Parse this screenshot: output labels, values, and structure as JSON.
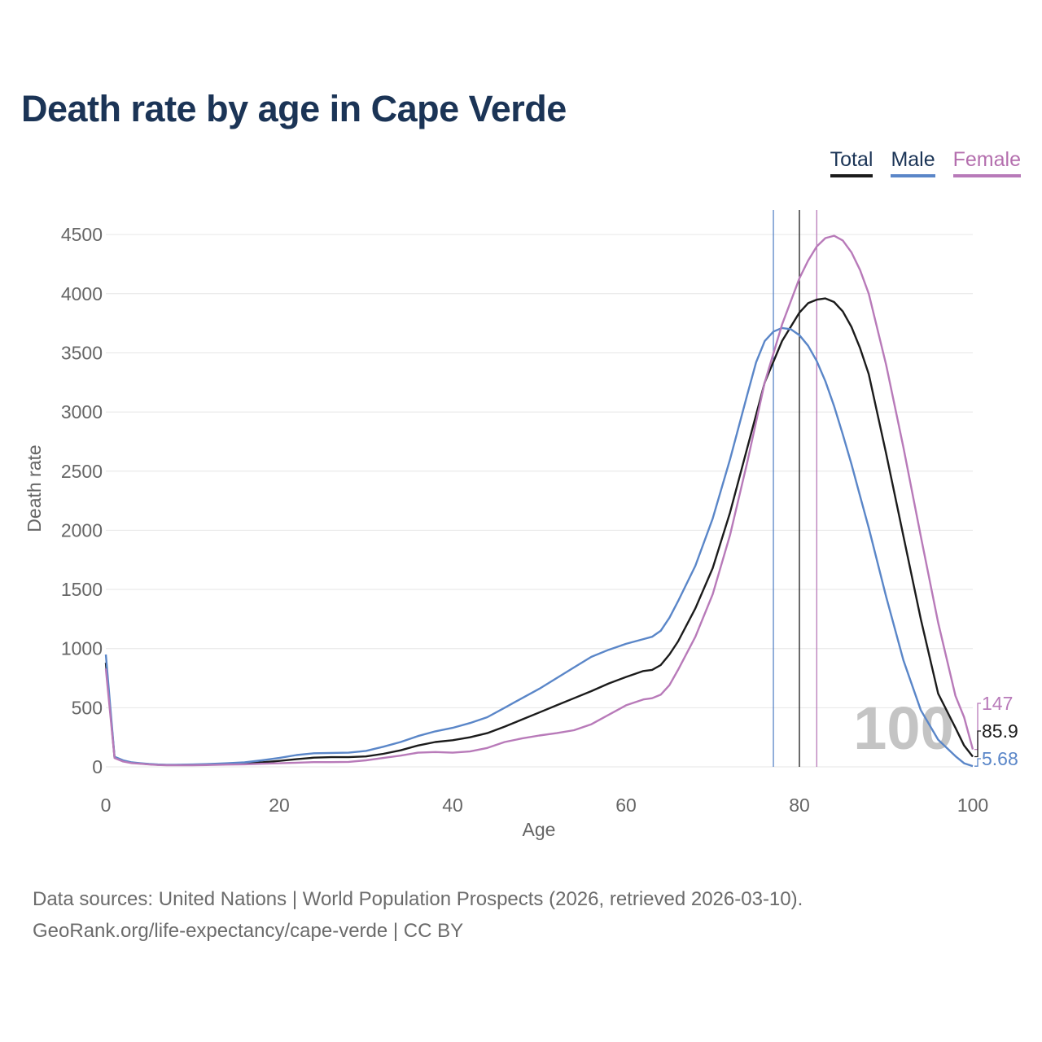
{
  "title": "Death rate by age in Cape Verde",
  "legend": [
    {
      "label": "Total",
      "color": "#1b1b1b"
    },
    {
      "label": "Male",
      "color": "#5a86c8"
    },
    {
      "label": "Female",
      "color": "#b87ab9"
    }
  ],
  "footer": {
    "line1": "Data sources: United Nations | World Population Prospects (2026, retrieved 2026-03-10).",
    "line2": "GeoRank.org/life-expectancy/cape-verde | CC BY"
  },
  "chart_data": {
    "type": "line",
    "xlabel": "Age",
    "ylabel": "Death rate",
    "xlim": [
      0,
      100
    ],
    "ylim": [
      0,
      4700
    ],
    "xticks": [
      0,
      20,
      40,
      60,
      80,
      100
    ],
    "yticks": [
      0,
      500,
      1000,
      1500,
      2000,
      2500,
      3000,
      3500,
      4000,
      4500
    ],
    "grid": true,
    "watermark": "100",
    "vlines": [
      {
        "series": "Male",
        "x": 77
      },
      {
        "series": "Total",
        "x": 80
      },
      {
        "series": "Female",
        "x": 82
      }
    ],
    "end_labels": [
      {
        "series": "Female",
        "text": "147",
        "value": 147
      },
      {
        "series": "Total",
        "text": "85.9",
        "value": 85.9
      },
      {
        "series": "Male",
        "text": "5.68",
        "value": 5.68
      }
    ],
    "series": [
      {
        "name": "Total",
        "color": "#1b1b1b",
        "x": [
          0,
          1,
          2,
          3,
          4,
          5,
          6,
          7,
          8,
          10,
          12,
          14,
          16,
          18,
          20,
          22,
          24,
          26,
          28,
          30,
          32,
          34,
          36,
          38,
          40,
          42,
          44,
          46,
          48,
          50,
          52,
          54,
          56,
          58,
          60,
          62,
          63,
          64,
          65,
          66,
          68,
          70,
          72,
          74,
          76,
          78,
          80,
          81,
          82,
          83,
          84,
          85,
          86,
          87,
          88,
          90,
          92,
          94,
          96,
          98,
          99,
          100
        ],
        "y": [
          880,
          80,
          50,
          35,
          28,
          22,
          18,
          16,
          15,
          17,
          20,
          24,
          28,
          38,
          50,
          65,
          78,
          82,
          82,
          88,
          110,
          140,
          180,
          210,
          225,
          250,
          285,
          340,
          400,
          460,
          520,
          580,
          640,
          705,
          760,
          810,
          820,
          860,
          950,
          1060,
          1340,
          1680,
          2150,
          2700,
          3250,
          3600,
          3840,
          3920,
          3950,
          3960,
          3930,
          3850,
          3720,
          3540,
          3320,
          2650,
          1950,
          1250,
          620,
          330,
          180,
          86
        ]
      },
      {
        "name": "Male",
        "color": "#5a86c8",
        "x": [
          0,
          1,
          2,
          3,
          4,
          5,
          6,
          7,
          8,
          10,
          12,
          14,
          16,
          18,
          20,
          22,
          24,
          26,
          28,
          30,
          32,
          34,
          36,
          38,
          40,
          42,
          44,
          46,
          48,
          50,
          52,
          54,
          56,
          58,
          60,
          62,
          63,
          64,
          65,
          66,
          68,
          70,
          72,
          74,
          75,
          76,
          77,
          78,
          79,
          80,
          81,
          82,
          83,
          84,
          85,
          86,
          87,
          88,
          90,
          92,
          94,
          96,
          98,
          99,
          100
        ],
        "y": [
          950,
          85,
          55,
          38,
          30,
          24,
          20,
          18,
          17,
          20,
          24,
          30,
          38,
          55,
          75,
          100,
          115,
          118,
          120,
          135,
          170,
          210,
          260,
          300,
          330,
          370,
          420,
          500,
          580,
          660,
          750,
          840,
          930,
          990,
          1040,
          1080,
          1100,
          1150,
          1260,
          1400,
          1700,
          2100,
          2600,
          3150,
          3420,
          3600,
          3680,
          3710,
          3700,
          3650,
          3560,
          3430,
          3260,
          3050,
          2810,
          2560,
          2290,
          2020,
          1440,
          900,
          480,
          230,
          90,
          30,
          6
        ]
      },
      {
        "name": "Female",
        "color": "#b87ab9",
        "x": [
          0,
          1,
          2,
          3,
          4,
          5,
          6,
          7,
          8,
          10,
          12,
          14,
          16,
          18,
          20,
          22,
          24,
          26,
          28,
          30,
          32,
          34,
          36,
          38,
          40,
          42,
          44,
          46,
          48,
          50,
          52,
          54,
          56,
          58,
          60,
          62,
          63,
          64,
          65,
          66,
          68,
          70,
          72,
          74,
          76,
          78,
          80,
          81,
          82,
          83,
          84,
          85,
          86,
          87,
          88,
          90,
          92,
          94,
          96,
          98,
          99,
          100
        ],
        "y": [
          830,
          75,
          45,
          32,
          26,
          20,
          16,
          14,
          13,
          14,
          16,
          19,
          21,
          26,
          30,
          35,
          40,
          40,
          42,
          55,
          75,
          95,
          120,
          125,
          120,
          130,
          160,
          210,
          240,
          265,
          285,
          310,
          360,
          440,
          520,
          570,
          580,
          610,
          690,
          820,
          1100,
          1460,
          1960,
          2580,
          3250,
          3740,
          4130,
          4280,
          4400,
          4470,
          4490,
          4450,
          4350,
          4200,
          4000,
          3400,
          2700,
          1950,
          1220,
          600,
          420,
          147
        ]
      }
    ]
  }
}
